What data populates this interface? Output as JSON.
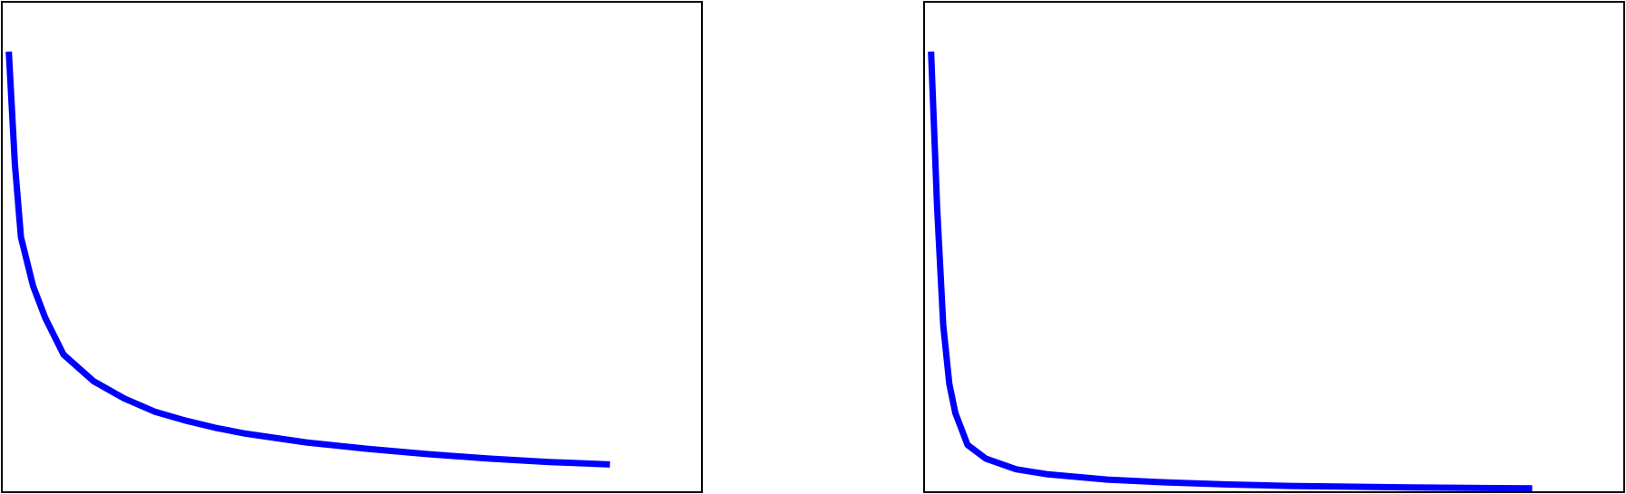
{
  "chart_data": [
    {
      "type": "line",
      "title": "",
      "xlabel": "",
      "ylabel": "",
      "grid": false,
      "legend": "none",
      "xlim": [
        0,
        1.15
      ],
      "ylim": [
        0,
        1.0
      ],
      "series": [
        {
          "color": "#0000ff",
          "x": [
            0.01,
            0.02,
            0.03,
            0.05,
            0.07,
            0.1,
            0.15,
            0.2,
            0.25,
            0.3,
            0.35,
            0.4,
            0.5,
            0.6,
            0.7,
            0.8,
            0.9,
            1.0
          ],
          "y": [
            0.9,
            0.67,
            0.52,
            0.42,
            0.355,
            0.28,
            0.225,
            0.19,
            0.163,
            0.145,
            0.13,
            0.118,
            0.1,
            0.087,
            0.076,
            0.067,
            0.06,
            0.055
          ]
        }
      ]
    },
    {
      "type": "line",
      "title": "",
      "xlabel": "",
      "ylabel": "",
      "grid": false,
      "legend": "none",
      "xlim": [
        0,
        1.15
      ],
      "ylim": [
        0,
        1.0
      ],
      "series": [
        {
          "color": "#0000ff",
          "x": [
            0.01,
            0.02,
            0.03,
            0.04,
            0.05,
            0.07,
            0.1,
            0.15,
            0.2,
            0.3,
            0.4,
            0.5,
            0.6,
            0.8,
            1.0
          ],
          "y": [
            0.9,
            0.58,
            0.34,
            0.22,
            0.16,
            0.095,
            0.067,
            0.045,
            0.035,
            0.024,
            0.018,
            0.014,
            0.011,
            0.008,
            0.006
          ]
        }
      ]
    }
  ]
}
